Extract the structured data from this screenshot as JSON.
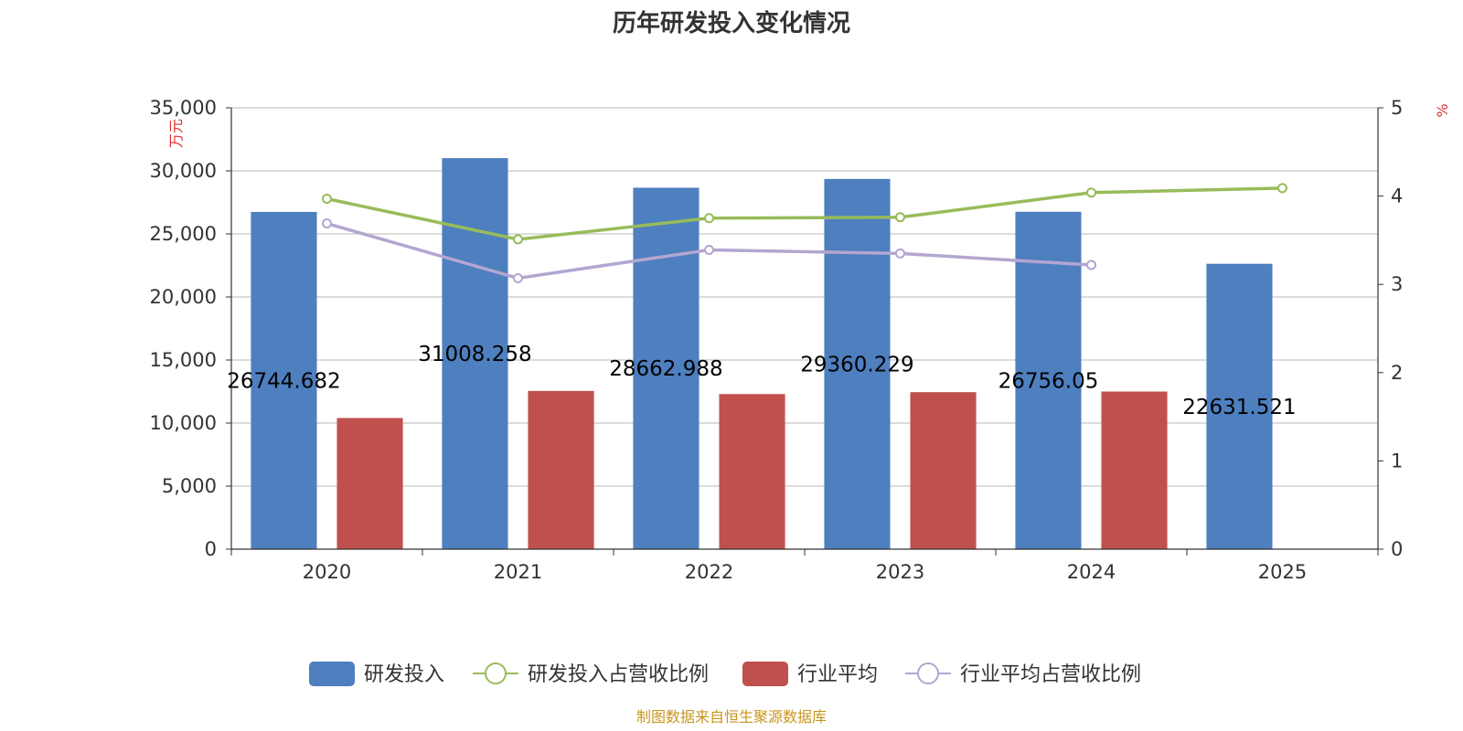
{
  "chart_data": {
    "type": "bar",
    "title": "历年研发投入变化情况",
    "categories": [
      "2020",
      "2021",
      "2022",
      "2023",
      "2024",
      "2025"
    ],
    "y_left": {
      "unit": "万元",
      "min": 0,
      "max": 35000,
      "step": 5000,
      "tick_labels": [
        "0",
        "5,000",
        "10,000",
        "15,000",
        "20,000",
        "25,000",
        "30,000",
        "35,000"
      ]
    },
    "y_right": {
      "unit": "%",
      "min": 0,
      "max": 5,
      "step": 1,
      "tick_labels": [
        "0",
        "1",
        "2",
        "3",
        "4",
        "5"
      ]
    },
    "grid": true,
    "legend_position": "bottom",
    "series": [
      {
        "name": "研发投入",
        "kind": "bar",
        "axis": "left",
        "color": "#4e7fbf",
        "values": [
          26744.682,
          31008.258,
          28662.988,
          29360.229,
          26756.05,
          22631.521
        ],
        "labels": [
          "26744.682",
          "31008.258",
          "28662.988",
          "29360.229",
          "26756.05",
          "22631.521"
        ]
      },
      {
        "name": "研发投入占营收比例",
        "kind": "line",
        "axis": "right",
        "color": "#98bb5a",
        "values": [
          3.97,
          3.51,
          3.75,
          3.76,
          4.04,
          4.09
        ]
      },
      {
        "name": "行业平均",
        "kind": "bar",
        "axis": "left",
        "color": "#c0504d",
        "values": [
          10400,
          12550,
          12300,
          12450,
          12500,
          null
        ]
      },
      {
        "name": "行业平均占营收比例",
        "kind": "line",
        "axis": "right",
        "color": "#b3a6d1",
        "values": [
          3.69,
          3.07,
          3.39,
          3.35,
          3.22,
          null
        ]
      }
    ]
  },
  "source": "制图数据来自恒生聚源数据库"
}
